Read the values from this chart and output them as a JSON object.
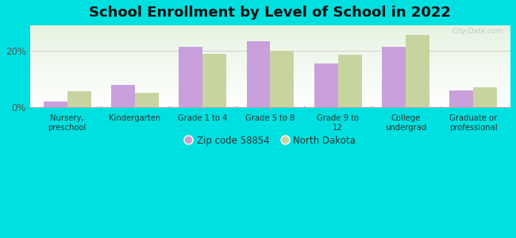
{
  "title": "School Enrollment by Level of School in 2022",
  "categories": [
    "Nursery,\npreschool",
    "Kindergarten",
    "Grade 1 to 4",
    "Grade 5 to 8",
    "Grade 9 to\n12",
    "College\nundergrad",
    "Graduate or\nprofessional"
  ],
  "zip_values": [
    2.0,
    8.0,
    21.5,
    23.5,
    15.5,
    21.5,
    6.0
  ],
  "nd_values": [
    5.5,
    5.0,
    19.0,
    20.0,
    18.5,
    25.5,
    7.0
  ],
  "zip_color": "#c9a0dc",
  "nd_color": "#c8d4a0",
  "background_color": "#00e0e0",
  "ylabel": "",
  "ylim": [
    0,
    29
  ],
  "yticks": [
    0,
    20
  ],
  "ytick_labels": [
    "0%",
    "20%"
  ],
  "zip_label": "Zip code 58854",
  "nd_label": "North Dakota",
  "title_fontsize": 13,
  "bar_width": 0.35,
  "watermark": "City-Data.com"
}
